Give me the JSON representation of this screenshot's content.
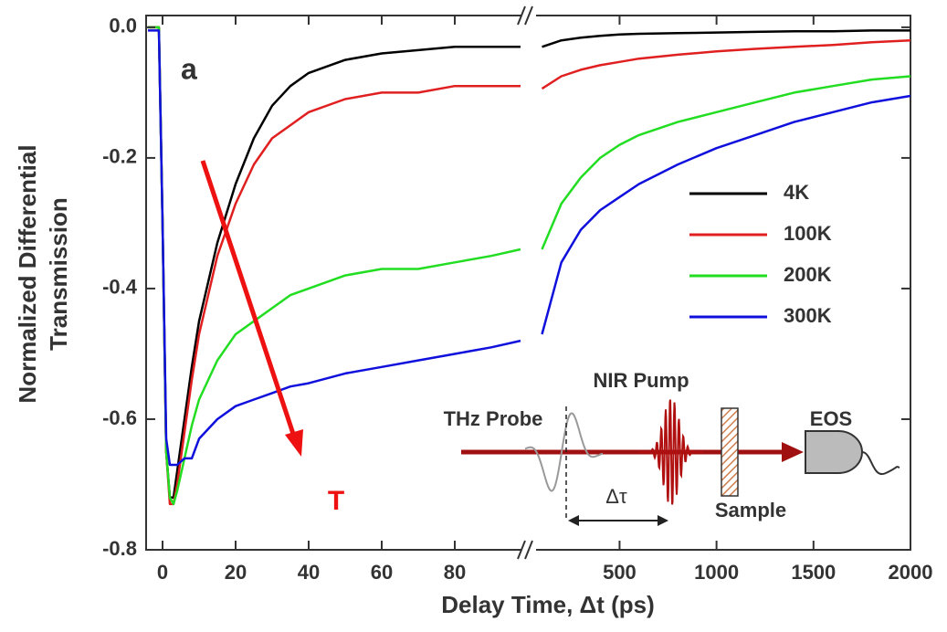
{
  "chart_data": {
    "type": "line",
    "annotation": "a",
    "arrow_label": "T",
    "ylabel": [
      "Normalized Differential",
      "Transmission"
    ],
    "xlabel": "Delay Time, Δt (ps)",
    "ylim": [
      -0.8,
      0.018
    ],
    "yticks": [
      {
        "value": 0,
        "label": "0.0"
      },
      -0.2,
      -0.4,
      -0.6,
      -0.8
    ],
    "xlim": [
      [
        -4.5,
        100
      ],
      [
        60,
        2000
      ]
    ],
    "xticks": [
      [
        0,
        20,
        40,
        60,
        80
      ],
      [
        500,
        1000,
        1500,
        2000
      ]
    ],
    "x": [
      [
        -4,
        -2,
        -1,
        0,
        1,
        2,
        3,
        4,
        6,
        8,
        10,
        15,
        20,
        25,
        30,
        35,
        40,
        50,
        60,
        70,
        80,
        90,
        98
      ],
      [
        100,
        200,
        300,
        400,
        500,
        600,
        800,
        1000,
        1200,
        1400,
        1600,
        1800,
        2000
      ]
    ],
    "series": [
      {
        "name": "4K",
        "color": "#000000",
        "values": [
          [
            0,
            0,
            0,
            -0.3,
            -0.65,
            -0.72,
            -0.72,
            -0.68,
            -0.6,
            -0.52,
            -0.45,
            -0.33,
            -0.24,
            -0.17,
            -0.12,
            -0.09,
            -0.07,
            -0.05,
            -0.04,
            -0.035,
            -0.03,
            -0.03,
            -0.03
          ],
          [
            -0.03,
            -0.02,
            -0.016,
            -0.013,
            -0.011,
            -0.01,
            -0.009,
            -0.008,
            -0.007,
            -0.006,
            -0.006,
            -0.005,
            -0.005
          ]
        ]
      },
      {
        "name": "100K",
        "color": "#e02020",
        "values": [
          [
            0,
            0,
            0,
            -0.3,
            -0.65,
            -0.73,
            -0.73,
            -0.7,
            -0.62,
            -0.54,
            -0.47,
            -0.35,
            -0.27,
            -0.21,
            -0.17,
            -0.15,
            -0.13,
            -0.11,
            -0.1,
            -0.1,
            -0.09,
            -0.09,
            -0.09
          ],
          [
            -0.094,
            -0.075,
            -0.065,
            -0.058,
            -0.053,
            -0.048,
            -0.042,
            -0.037,
            -0.033,
            -0.03,
            -0.027,
            -0.023,
            -0.02
          ]
        ]
      },
      {
        "name": "200K",
        "color": "#22dd22",
        "values": [
          [
            0,
            0,
            0,
            -0.3,
            -0.65,
            -0.72,
            -0.73,
            -0.71,
            -0.66,
            -0.61,
            -0.57,
            -0.51,
            -0.47,
            -0.45,
            -0.43,
            -0.41,
            -0.4,
            -0.38,
            -0.37,
            -0.37,
            -0.36,
            -0.35,
            -0.34
          ],
          [
            -0.34,
            -0.27,
            -0.23,
            -0.2,
            -0.18,
            -0.165,
            -0.145,
            -0.13,
            -0.115,
            -0.1,
            -0.09,
            -0.08,
            -0.075
          ]
        ]
      },
      {
        "name": "300K",
        "color": "#1010dd",
        "values": [
          [
            -0.005,
            -0.005,
            -0.005,
            -0.3,
            -0.63,
            -0.67,
            -0.67,
            -0.67,
            -0.66,
            -0.66,
            -0.63,
            -0.6,
            -0.58,
            -0.57,
            -0.56,
            -0.55,
            -0.545,
            -0.53,
            -0.52,
            -0.51,
            -0.5,
            -0.49,
            -0.48
          ],
          [
            -0.47,
            -0.36,
            -0.31,
            -0.28,
            -0.26,
            -0.24,
            -0.21,
            -0.185,
            -0.165,
            -0.145,
            -0.13,
            -0.115,
            -0.105
          ]
        ]
      }
    ],
    "inset": {
      "probe": "THz Probe",
      "pump": "NIR Pump",
      "delay": "Δτ",
      "sample": "Sample",
      "detector": "EOS"
    }
  }
}
